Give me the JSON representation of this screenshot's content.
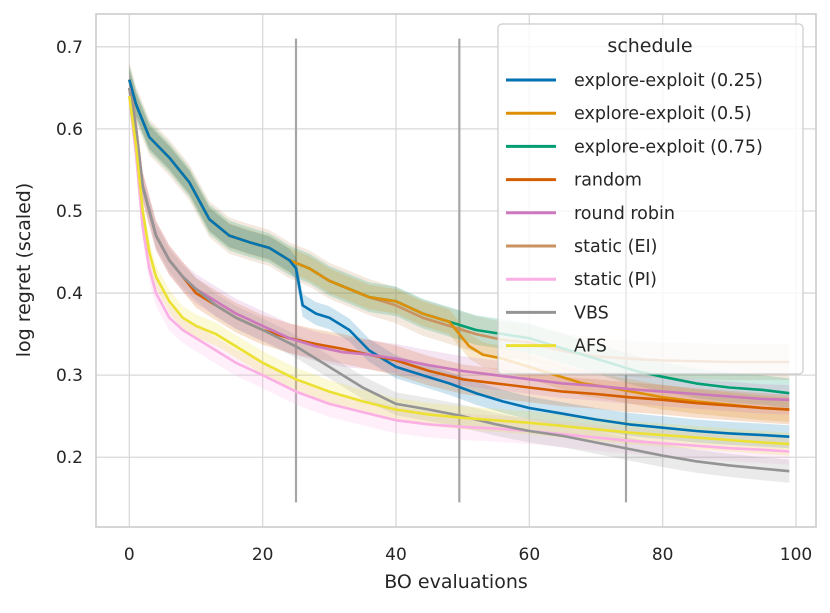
{
  "chart_data": {
    "type": "line",
    "xlabel": "BO evaluations",
    "ylabel": "log regret (scaled)",
    "xlim": [
      -5,
      103
    ],
    "ylim": [
      0.115,
      0.74
    ],
    "xticks": [
      0,
      20,
      40,
      60,
      80,
      100
    ],
    "yticks": [
      0.2,
      0.3,
      0.4,
      0.5,
      0.6,
      0.7
    ],
    "xtick_labels": [
      "0",
      "20",
      "40",
      "60",
      "80",
      "100"
    ],
    "ytick_labels": [
      "0.2",
      "0.3",
      "0.4",
      "0.5",
      "0.6",
      "0.7"
    ],
    "grid": true,
    "vlines": {
      "x": [
        25,
        49.5,
        74.5
      ],
      "ymin": 0.145,
      "ymax": 0.71,
      "color": "#a6a6a6"
    },
    "legend": {
      "title": "schedule",
      "placement": "top-right"
    },
    "series": [
      {
        "name": "static (EI)",
        "color": "#CA9161",
        "band": 0.022,
        "x": [
          0,
          1,
          3,
          6,
          9,
          12,
          15,
          18,
          21,
          24,
          27,
          30,
          33,
          36,
          40,
          44,
          48,
          52,
          56,
          60,
          62,
          66,
          70,
          75,
          80,
          85,
          90,
          95,
          99
        ],
        "y": [
          0.66,
          0.63,
          0.59,
          0.565,
          0.535,
          0.49,
          0.47,
          0.462,
          0.455,
          0.44,
          0.43,
          0.415,
          0.405,
          0.395,
          0.385,
          0.37,
          0.36,
          0.35,
          0.343,
          0.34,
          0.335,
          0.328,
          0.323,
          0.32,
          0.318,
          0.317,
          0.316,
          0.316,
          0.316
        ]
      },
      {
        "name": "explore-exploit (0.75)",
        "color": "#029E73",
        "band": 0.018,
        "x": [
          0,
          1,
          3,
          6,
          9,
          12,
          15,
          18,
          21,
          24,
          27,
          30,
          33,
          36,
          40,
          44,
          48,
          52,
          56,
          60,
          64,
          68,
          72,
          76,
          80,
          85,
          90,
          95,
          99
        ],
        "y": [
          0.66,
          0.63,
          0.59,
          0.565,
          0.535,
          0.49,
          0.47,
          0.462,
          0.455,
          0.44,
          0.43,
          0.415,
          0.405,
          0.395,
          0.39,
          0.375,
          0.365,
          0.355,
          0.35,
          0.345,
          0.335,
          0.325,
          0.315,
          0.305,
          0.298,
          0.29,
          0.285,
          0.282,
          0.278
        ]
      },
      {
        "name": "explore-exploit (0.5)",
        "color": "#DE8F05",
        "band": 0.015,
        "x": [
          0,
          1,
          3,
          6,
          9,
          12,
          15,
          18,
          21,
          24,
          27,
          30,
          33,
          36,
          40,
          44,
          48,
          51,
          53,
          56,
          60,
          64,
          68,
          72,
          76,
          80,
          85,
          90,
          95,
          99
        ],
        "y": [
          0.66,
          0.63,
          0.59,
          0.565,
          0.535,
          0.49,
          0.47,
          0.462,
          0.455,
          0.44,
          0.43,
          0.415,
          0.405,
          0.395,
          0.39,
          0.375,
          0.365,
          0.335,
          0.325,
          0.32,
          0.31,
          0.3,
          0.29,
          0.285,
          0.279,
          0.273,
          0.268,
          0.264,
          0.26,
          0.258
        ]
      },
      {
        "name": "explore-exploit (0.25)",
        "color": "#0173B2",
        "band": 0.014,
        "x": [
          0,
          1,
          3,
          6,
          9,
          12,
          15,
          18,
          21,
          24,
          25,
          26,
          28,
          30,
          33,
          36,
          40,
          44,
          48,
          52,
          56,
          60,
          65,
          70,
          75,
          80,
          85,
          90,
          95,
          99
        ],
        "y": [
          0.66,
          0.63,
          0.59,
          0.565,
          0.535,
          0.49,
          0.47,
          0.462,
          0.455,
          0.44,
          0.43,
          0.385,
          0.375,
          0.37,
          0.355,
          0.33,
          0.31,
          0.3,
          0.29,
          0.278,
          0.268,
          0.26,
          0.253,
          0.246,
          0.24,
          0.236,
          0.232,
          0.229,
          0.227,
          0.225
        ]
      },
      {
        "name": "random",
        "color": "#D55E00",
        "band": 0.018,
        "x": [
          0,
          1,
          2,
          4,
          6,
          8,
          10,
          13,
          16,
          20,
          24,
          28,
          32,
          36,
          40,
          45,
          50,
          55,
          60,
          65,
          70,
          75,
          80,
          85,
          90,
          95,
          99
        ],
        "y": [
          0.65,
          0.6,
          0.53,
          0.47,
          0.44,
          0.42,
          0.4,
          0.385,
          0.37,
          0.355,
          0.345,
          0.338,
          0.332,
          0.325,
          0.318,
          0.305,
          0.295,
          0.29,
          0.285,
          0.28,
          0.277,
          0.273,
          0.27,
          0.266,
          0.263,
          0.26,
          0.258
        ]
      },
      {
        "name": "round robin",
        "color": "#CC78BC",
        "band": 0.018,
        "x": [
          0,
          1,
          2,
          4,
          6,
          8,
          10,
          13,
          16,
          20,
          24,
          28,
          32,
          36,
          40,
          45,
          50,
          55,
          60,
          65,
          70,
          75,
          80,
          85,
          90,
          95,
          99
        ],
        "y": [
          0.65,
          0.6,
          0.53,
          0.47,
          0.44,
          0.42,
          0.405,
          0.39,
          0.375,
          0.36,
          0.345,
          0.335,
          0.328,
          0.325,
          0.32,
          0.312,
          0.305,
          0.3,
          0.295,
          0.29,
          0.287,
          0.283,
          0.28,
          0.277,
          0.274,
          0.271,
          0.27
        ]
      },
      {
        "name": "static (PI)",
        "color": "#FBAFE4",
        "band": 0.016,
        "x": [
          0,
          1,
          2,
          3,
          4,
          6,
          8,
          10,
          13,
          16,
          20,
          25,
          30,
          35,
          40,
          45,
          50,
          55,
          60,
          65,
          70,
          75,
          80,
          85,
          90,
          95,
          99
        ],
        "y": [
          0.64,
          0.57,
          0.48,
          0.43,
          0.4,
          0.37,
          0.355,
          0.345,
          0.33,
          0.315,
          0.3,
          0.28,
          0.265,
          0.255,
          0.245,
          0.24,
          0.237,
          0.235,
          0.232,
          0.228,
          0.224,
          0.22,
          0.217,
          0.214,
          0.211,
          0.209,
          0.207
        ]
      },
      {
        "name": "VBS",
        "color": "#949494",
        "band": 0.014,
        "x": [
          0,
          1,
          2,
          4,
          6,
          8,
          10,
          13,
          16,
          20,
          25,
          30,
          35,
          40,
          45,
          50,
          55,
          60,
          65,
          70,
          75,
          80,
          85,
          90,
          95,
          99
        ],
        "y": [
          0.65,
          0.6,
          0.53,
          0.47,
          0.44,
          0.42,
          0.405,
          0.385,
          0.37,
          0.355,
          0.335,
          0.31,
          0.285,
          0.265,
          0.258,
          0.25,
          0.24,
          0.232,
          0.226,
          0.218,
          0.21,
          0.202,
          0.195,
          0.19,
          0.186,
          0.183
        ]
      },
      {
        "name": "AFS",
        "color": "#ECE133",
        "band": 0.014,
        "x": [
          0,
          1,
          2,
          3,
          4,
          6,
          8,
          10,
          13,
          16,
          20,
          25,
          30,
          35,
          40,
          45,
          50,
          55,
          60,
          65,
          70,
          75,
          80,
          85,
          90,
          95,
          99
        ],
        "y": [
          0.64,
          0.58,
          0.5,
          0.45,
          0.42,
          0.39,
          0.37,
          0.36,
          0.35,
          0.335,
          0.315,
          0.295,
          0.28,
          0.268,
          0.258,
          0.252,
          0.248,
          0.245,
          0.242,
          0.238,
          0.234,
          0.23,
          0.227,
          0.224,
          0.221,
          0.218,
          0.216
        ]
      }
    ],
    "legend_order": [
      "explore-exploit (0.25)",
      "explore-exploit (0.5)",
      "explore-exploit (0.75)",
      "random",
      "round robin",
      "static (EI)",
      "static (PI)",
      "VBS",
      "AFS"
    ]
  }
}
